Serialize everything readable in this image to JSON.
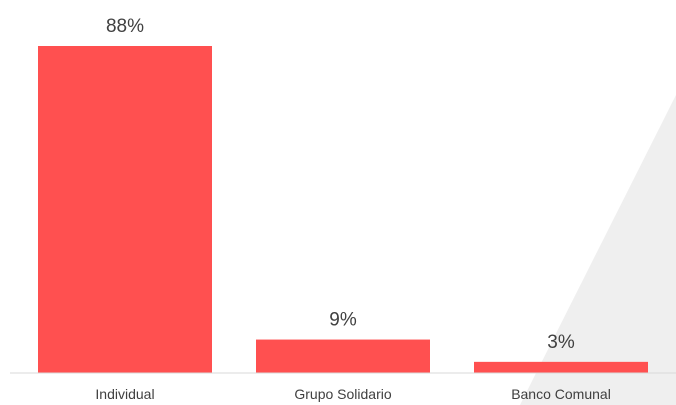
{
  "chart_data": {
    "type": "bar",
    "categories": [
      "Individual",
      "Grupo Solidario",
      "Banco Comunal"
    ],
    "values": [
      88,
      9,
      3
    ],
    "data_labels": [
      "88%",
      "9%",
      "3%"
    ],
    "value_unit": "%",
    "ylim": [
      0,
      88
    ],
    "grid": false,
    "legend": "none",
    "bar_color": "#FF5050",
    "label_color": "#404040",
    "baseline_color": "#D9D9D9",
    "background_shape_color": "#EFEFEF"
  }
}
